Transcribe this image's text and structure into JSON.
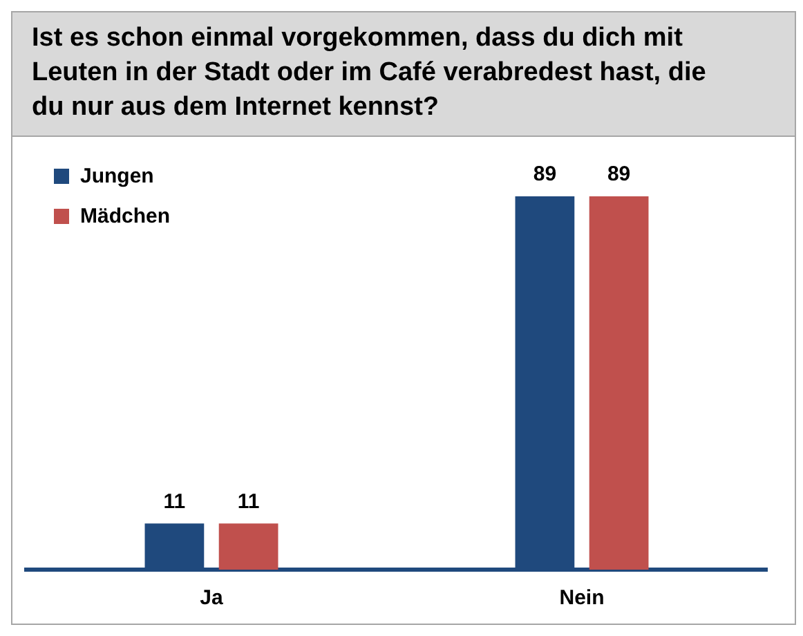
{
  "chart_data": {
    "type": "bar",
    "title": "Ist es schon einmal vorgekommen, dass du dich mit Leuten in der Stadt oder im Café verabredest hast, die du nur aus dem Internet kennst?",
    "categories": [
      "Ja",
      "Nein"
    ],
    "series": [
      {
        "name": "Jungen",
        "color": "#1f497d",
        "values": [
          11,
          89
        ]
      },
      {
        "name": "Mädchen",
        "color": "#c0504d",
        "values": [
          11,
          89
        ]
      }
    ],
    "data_labels": true,
    "legend": "top left",
    "grid": false
  }
}
